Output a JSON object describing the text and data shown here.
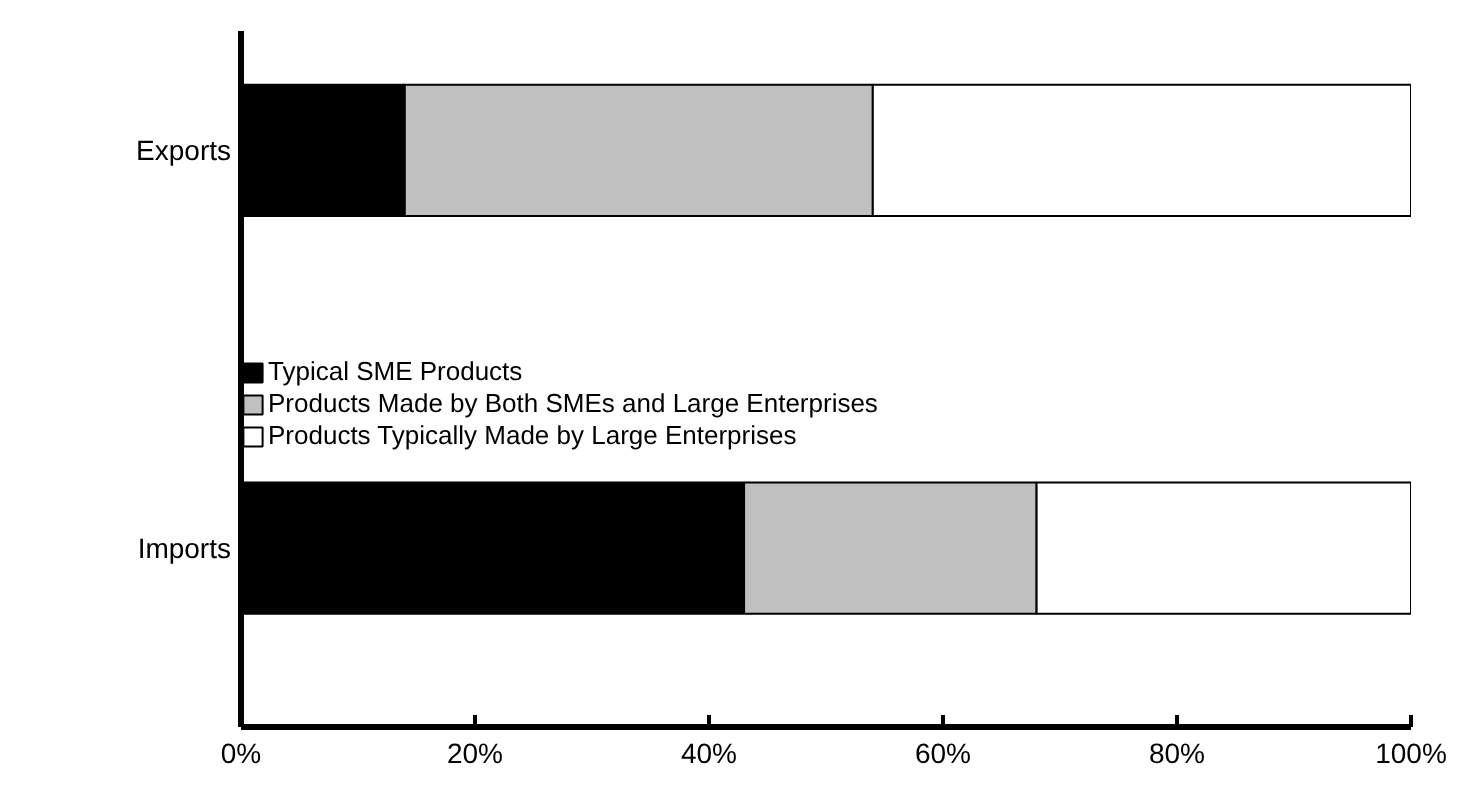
{
  "chart_data": {
    "type": "bar",
    "orientation": "horizontal",
    "stacked": true,
    "categories": [
      "Exports",
      "Imports"
    ],
    "series": [
      {
        "name": "Typical SME Products",
        "color": "#000000",
        "values": [
          14,
          43
        ]
      },
      {
        "name": "Products Made by Both SMEs and Large Enterprises",
        "color": "#c0c0c0",
        "values": [
          40,
          25
        ]
      },
      {
        "name": "Products Typically Made by Large Enterprises",
        "color": "#ffffff",
        "values": [
          46,
          32
        ]
      }
    ],
    "xlim": [
      0,
      100
    ],
    "xticks": [
      {
        "value": 0,
        "label": "0%"
      },
      {
        "value": 20,
        "label": "20%"
      },
      {
        "value": 40,
        "label": "40%"
      },
      {
        "value": 60,
        "label": "60%"
      },
      {
        "value": 80,
        "label": "80%"
      },
      {
        "value": 100,
        "label": "100%"
      }
    ],
    "grid": false,
    "legend": "left"
  }
}
